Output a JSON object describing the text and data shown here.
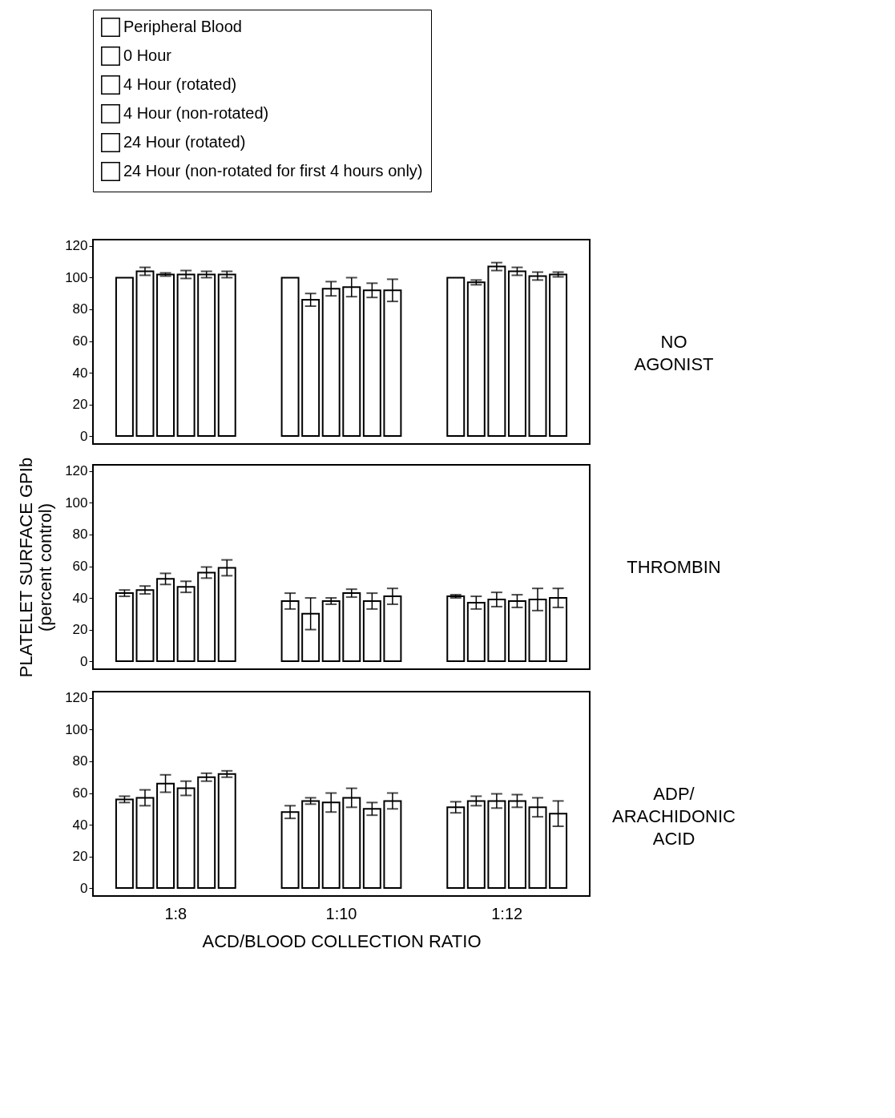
{
  "chart_data": [
    {
      "type": "bar",
      "categories": [
        null,
        null,
        null
      ],
      "ylim": [
        -5,
        124
      ],
      "yticks": [
        0,
        20,
        40,
        60,
        80,
        100,
        120
      ],
      "grid": false,
      "legend": "top",
      "tick_labels": "y",
      "annotations": [
        "NO AGONIST"
      ],
      "series": [
        {
          "name": "Peripheral Blood",
          "color": "#ffffff",
          "values": [
            100,
            100,
            100
          ],
          "errors": [
            null,
            null,
            null
          ]
        },
        {
          "name": "0 Hour",
          "color": "#ffffff",
          "values": [
            104,
            86,
            97
          ],
          "errors": [
            2.5,
            4,
            1.5
          ]
        },
        {
          "name": "4 Hour (rotated)",
          "color": "#ffffff",
          "values": [
            102,
            93,
            107
          ],
          "errors": [
            1,
            4.5,
            2.5
          ]
        },
        {
          "name": "4 Hour (non-rotated)",
          "color": "#ffffff",
          "values": [
            102,
            94,
            104
          ],
          "errors": [
            2.5,
            6,
            2.5
          ]
        },
        {
          "name": "24 Hour (rotated)",
          "color": "#ffffff",
          "values": [
            102,
            92,
            101
          ],
          "errors": [
            2,
            4.5,
            2.5
          ]
        },
        {
          "name": "24 Hour (non-rotated for first 4 hours only)",
          "color": "#ffffff",
          "values": [
            102,
            92,
            102
          ],
          "errors": [
            2,
            7,
            1.5
          ]
        }
      ]
    },
    {
      "type": "bar",
      "categories": [
        null,
        null,
        null
      ],
      "ylim": [
        -5,
        124
      ],
      "yticks": [
        0,
        20,
        40,
        60,
        80,
        100,
        120
      ],
      "grid": false,
      "tick_labels": "y",
      "ylabel": "PLATELET SURFACE GPIb\n(percent control)",
      "annotations": [
        "THROMBIN"
      ],
      "series": [
        {
          "color": "#ffffff",
          "values": [
            43,
            38,
            41
          ],
          "errors": [
            2,
            5,
            1
          ]
        },
        {
          "color": "#ffffff",
          "values": [
            45,
            30,
            37
          ],
          "errors": [
            2.5,
            10,
            4
          ]
        },
        {
          "color": "#ffffff",
          "values": [
            52,
            38,
            39
          ],
          "errors": [
            3.5,
            2,
            4.5
          ]
        },
        {
          "color": "#ffffff",
          "values": [
            47,
            43,
            38
          ],
          "errors": [
            3.5,
            2.5,
            4
          ]
        },
        {
          "color": "#ffffff",
          "values": [
            56,
            38,
            39
          ],
          "errors": [
            3.5,
            5,
            7
          ]
        },
        {
          "color": "#ffffff",
          "values": [
            59,
            41,
            40
          ],
          "errors": [
            5,
            5,
            6
          ]
        }
      ]
    },
    {
      "type": "bar",
      "categories": [
        "1:8",
        "1:10",
        "1:12"
      ],
      "ylim": [
        -5,
        124
      ],
      "yticks": [
        0,
        20,
        40,
        60,
        80,
        100,
        120
      ],
      "grid": false,
      "xlabel": "ACD/BLOOD COLLECTION RATIO",
      "annotations": [
        "ADP/ ARACHIDONIC ACID"
      ],
      "series": [
        {
          "color": "#ffffff",
          "values": [
            56,
            48,
            51
          ],
          "errors": [
            2,
            4,
            3.5
          ]
        },
        {
          "color": "#ffffff",
          "values": [
            57,
            55,
            55
          ],
          "errors": [
            5,
            2,
            3
          ]
        },
        {
          "color": "#ffffff",
          "values": [
            66,
            54,
            55
          ],
          "errors": [
            5.5,
            6,
            4.5
          ]
        },
        {
          "color": "#ffffff",
          "values": [
            63,
            57,
            55
          ],
          "errors": [
            4.5,
            6,
            4
          ]
        },
        {
          "color": "#ffffff",
          "values": [
            70,
            50,
            51
          ],
          "errors": [
            2.5,
            4,
            6
          ]
        },
        {
          "color": "#ffffff",
          "values": [
            72,
            55,
            47
          ],
          "errors": [
            2,
            5,
            8
          ]
        }
      ]
    }
  ]
}
